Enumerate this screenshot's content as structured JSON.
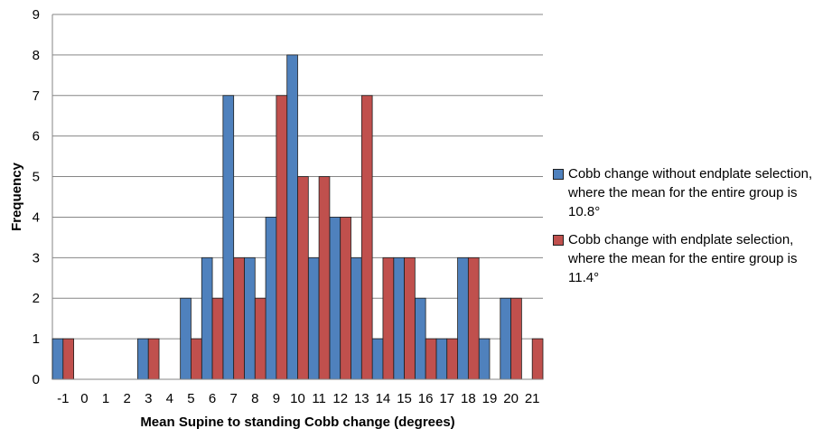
{
  "chart_data": {
    "type": "bar",
    "categories": [
      "-1",
      "0",
      "1",
      "2",
      "3",
      "4",
      "5",
      "6",
      "7",
      "8",
      "9",
      "10",
      "11",
      "12",
      "13",
      "14",
      "15",
      "16",
      "17",
      "18",
      "19",
      "20",
      "21"
    ],
    "series": [
      {
        "name": "Cobb change without endplate selection, where the mean for the entire group is 10.8°",
        "values": [
          1,
          0,
          0,
          0,
          1,
          0,
          2,
          3,
          7,
          3,
          4,
          8,
          3,
          4,
          3,
          1,
          3,
          2,
          1,
          3,
          1,
          2,
          0
        ],
        "color": "#4f81bd"
      },
      {
        "name": "Cobb change with endplate selection, where the mean for the entire group is 11.4°",
        "values": [
          1,
          0,
          0,
          0,
          1,
          0,
          1,
          2,
          3,
          2,
          7,
          5,
          5,
          4,
          7,
          3,
          3,
          1,
          1,
          3,
          0,
          2,
          1
        ],
        "color": "#c0504d"
      }
    ],
    "xlabel": "Mean Supine to standing Cobb change (degrees)",
    "ylabel": "Frequency",
    "ylim": [
      0,
      9
    ],
    "yticks": [
      "0",
      "1",
      "2",
      "3",
      "4",
      "5",
      "6",
      "7",
      "8",
      "9"
    ],
    "grid": true,
    "legend_position": "right",
    "gridline_color": "#868686",
    "bar_border_color": "#1f1f1f"
  }
}
